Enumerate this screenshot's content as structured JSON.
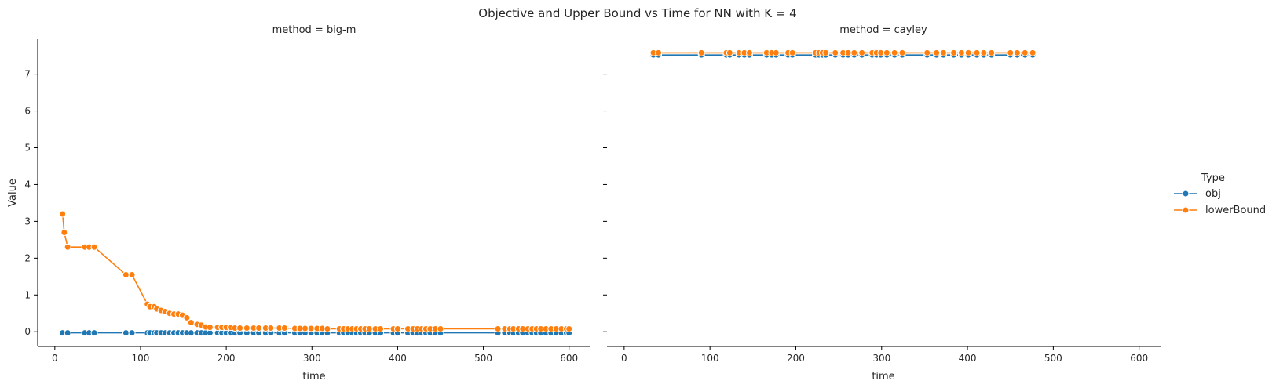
{
  "chart_data": {
    "title": "Objective and Upper Bound vs Time for NN with K = 4",
    "type": "line",
    "ylabel": "Value",
    "ylim": [
      -0.4,
      7.95
    ],
    "yticks": [
      0,
      1,
      2,
      3,
      4,
      5,
      6,
      7
    ],
    "xlim": [
      -20,
      625
    ],
    "xticks": [
      0,
      100,
      200,
      300,
      400,
      500,
      600
    ],
    "legend": {
      "title": "Type",
      "placement": "right",
      "entries": [
        {
          "label": "obj",
          "color": "#1f77b4"
        },
        {
          "label": "lowerBound",
          "color": "#ff7f0e"
        }
      ]
    },
    "panels": [
      {
        "title": "method = big-m",
        "xlabel": "time",
        "series": [
          {
            "name": "obj",
            "color": "#1f77b4",
            "x": [
              9,
              15,
              35,
              40,
              46,
              83,
              90,
              108,
              111,
              116,
              119,
              124,
              129,
              134,
              139,
              144,
              149,
              154,
              159,
              166,
              171,
              176,
              181,
              190,
              195,
              200,
              205,
              210,
              216,
              224,
              232,
              238,
              246,
              252,
              262,
              268,
              280,
              286,
              292,
              299,
              306,
              312,
              318,
              332,
              337,
              342,
              347,
              352,
              357,
              362,
              367,
              374,
              380,
              395,
              400,
              412,
              418,
              423,
              428,
              433,
              438,
              444,
              450,
              517,
              525,
              531,
              535,
              541,
              546,
              552,
              557,
              562,
              567,
              573,
              579,
              585,
              591,
              597,
              600
            ],
            "values": [
              -0.03,
              -0.03,
              -0.03,
              -0.03,
              -0.03,
              -0.03,
              -0.03,
              -0.03,
              -0.03,
              -0.03,
              -0.03,
              -0.03,
              -0.03,
              -0.03,
              -0.03,
              -0.03,
              -0.03,
              -0.03,
              -0.03,
              -0.03,
              -0.03,
              -0.03,
              -0.03,
              -0.03,
              -0.03,
              -0.03,
              -0.03,
              -0.03,
              -0.03,
              -0.03,
              -0.03,
              -0.03,
              -0.03,
              -0.03,
              -0.03,
              -0.03,
              -0.03,
              -0.03,
              -0.03,
              -0.03,
              -0.03,
              -0.03,
              -0.03,
              -0.03,
              -0.03,
              -0.03,
              -0.03,
              -0.03,
              -0.03,
              -0.03,
              -0.03,
              -0.03,
              -0.03,
              -0.03,
              -0.03,
              -0.03,
              -0.03,
              -0.03,
              -0.03,
              -0.03,
              -0.03,
              -0.03,
              -0.03,
              -0.03,
              -0.03,
              -0.03,
              -0.03,
              -0.03,
              -0.03,
              -0.03,
              -0.03,
              -0.03,
              -0.03,
              -0.03,
              -0.03,
              -0.03,
              -0.03,
              -0.03,
              -0.03
            ]
          },
          {
            "name": "lowerBound",
            "color": "#ff7f0e",
            "x": [
              9,
              11,
              15,
              35,
              40,
              46,
              83,
              90,
              108,
              111,
              116,
              119,
              124,
              129,
              134,
              139,
              144,
              149,
              154,
              159,
              166,
              171,
              176,
              181,
              190,
              195,
              200,
              205,
              210,
              216,
              224,
              232,
              238,
              246,
              252,
              262,
              268,
              280,
              286,
              292,
              299,
              306,
              312,
              318,
              332,
              337,
              342,
              347,
              352,
              357,
              362,
              367,
              374,
              380,
              395,
              400,
              412,
              418,
              423,
              428,
              433,
              438,
              444,
              450,
              517,
              525,
              531,
              535,
              541,
              546,
              552,
              557,
              562,
              567,
              573,
              579,
              585,
              591,
              597,
              600
            ],
            "values": [
              3.2,
              2.7,
              2.3,
              2.3,
              2.3,
              2.3,
              1.55,
              1.55,
              0.75,
              0.68,
              0.68,
              0.62,
              0.58,
              0.55,
              0.5,
              0.48,
              0.48,
              0.45,
              0.38,
              0.25,
              0.2,
              0.18,
              0.13,
              0.12,
              0.12,
              0.12,
              0.12,
              0.12,
              0.1,
              0.1,
              0.1,
              0.1,
              0.1,
              0.1,
              0.1,
              0.1,
              0.1,
              0.09,
              0.09,
              0.09,
              0.09,
              0.09,
              0.09,
              0.08,
              0.08,
              0.08,
              0.08,
              0.08,
              0.08,
              0.08,
              0.08,
              0.08,
              0.08,
              0.08,
              0.08,
              0.08,
              0.08,
              0.08,
              0.08,
              0.08,
              0.08,
              0.08,
              0.08,
              0.08,
              0.08,
              0.08,
              0.08,
              0.08,
              0.08,
              0.08,
              0.08,
              0.08,
              0.08,
              0.08,
              0.08,
              0.08,
              0.08,
              0.08,
              0.08,
              0.08
            ]
          }
        ]
      },
      {
        "title": "method = cayley",
        "xlabel": "time",
        "series": [
          {
            "name": "obj",
            "color": "#1f77b4",
            "x": [
              34,
              40,
              90,
              119,
              123,
              134,
              140,
              146,
              166,
              172,
              177,
              191,
              196,
              223,
              227,
              231,
              235,
              246,
              255,
              261,
              268,
              277,
              289,
              294,
              299,
              306,
              315,
              324,
              353,
              364,
              372,
              384,
              393,
              401,
              411,
              419,
              428,
              450,
              458,
              467,
              476
            ],
            "values": [
              7.52,
              7.52,
              7.52,
              7.52,
              7.52,
              7.52,
              7.52,
              7.52,
              7.52,
              7.52,
              7.52,
              7.52,
              7.52,
              7.52,
              7.52,
              7.52,
              7.52,
              7.52,
              7.52,
              7.52,
              7.52,
              7.52,
              7.52,
              7.52,
              7.52,
              7.52,
              7.52,
              7.52,
              7.52,
              7.52,
              7.52,
              7.52,
              7.52,
              7.52,
              7.52,
              7.52,
              7.52,
              7.52,
              7.52,
              7.52,
              7.52
            ]
          },
          {
            "name": "lowerBound",
            "color": "#ff7f0e",
            "x": [
              34,
              40,
              90,
              119,
              123,
              134,
              140,
              146,
              166,
              172,
              177,
              191,
              196,
              223,
              227,
              231,
              235,
              246,
              255,
              261,
              268,
              277,
              289,
              294,
              299,
              306,
              315,
              324,
              353,
              364,
              372,
              384,
              393,
              401,
              411,
              419,
              428,
              450,
              458,
              467,
              476
            ],
            "values": [
              7.58,
              7.58,
              7.58,
              7.58,
              7.58,
              7.58,
              7.58,
              7.58,
              7.58,
              7.58,
              7.58,
              7.58,
              7.58,
              7.58,
              7.58,
              7.58,
              7.58,
              7.58,
              7.58,
              7.58,
              7.58,
              7.58,
              7.58,
              7.58,
              7.58,
              7.58,
              7.58,
              7.58,
              7.58,
              7.58,
              7.58,
              7.58,
              7.58,
              7.58,
              7.58,
              7.58,
              7.58,
              7.58,
              7.58,
              7.58,
              7.58
            ]
          }
        ]
      }
    ]
  }
}
